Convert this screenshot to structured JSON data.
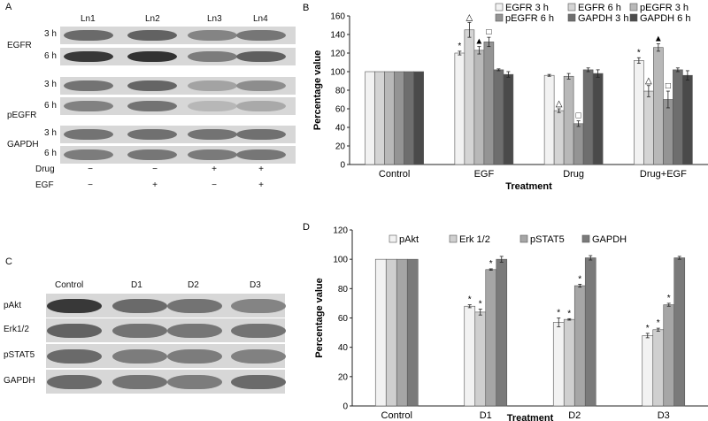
{
  "panel_a": {
    "letter": "A",
    "lanes": [
      "Ln1",
      "Ln2",
      "Ln3",
      "Ln4"
    ],
    "groups": [
      {
        "label": "EGFR",
        "rows": [
          "3 h",
          "6 h"
        ],
        "intensity": [
          [
            0.55,
            0.6,
            0.4,
            0.48
          ],
          [
            0.85,
            0.88,
            0.45,
            0.62
          ]
        ]
      },
      {
        "label": "pEGFR",
        "rows": [
          "3 h",
          "6 h"
        ],
        "intensity": [
          [
            0.5,
            0.58,
            0.22,
            0.35
          ],
          [
            0.42,
            0.5,
            0.1,
            0.18
          ]
        ]
      },
      {
        "label": "GAPDH",
        "rows": [
          "3 h",
          "6 h"
        ],
        "intensity": [
          [
            0.5,
            0.52,
            0.5,
            0.52
          ],
          [
            0.45,
            0.48,
            0.46,
            0.48
          ]
        ]
      }
    ],
    "conditions": [
      {
        "label": "Drug",
        "signs": [
          "−",
          "−",
          "+",
          "+"
        ]
      },
      {
        "label": "EGF",
        "signs": [
          "−",
          "+",
          "−",
          "+"
        ]
      }
    ]
  },
  "panel_c": {
    "letter": "C",
    "lanes": [
      "Control",
      "D1",
      "D2",
      "D3"
    ],
    "rows": [
      {
        "label": "pAkt",
        "intensity": [
          0.85,
          0.55,
          0.5,
          0.4
        ]
      },
      {
        "label": "Erk1/2",
        "intensity": [
          0.6,
          0.5,
          0.48,
          0.5
        ]
      },
      {
        "label": "pSTAT5",
        "intensity": [
          0.55,
          0.45,
          0.45,
          0.42
        ]
      },
      {
        "label": "GAPDH",
        "intensity": [
          0.55,
          0.5,
          0.45,
          0.55
        ]
      }
    ]
  },
  "chart_data": [
    {
      "panel": "B",
      "type": "bar",
      "xlabel": "Treatment",
      "ylabel": "Percentage value",
      "ylim": [
        0,
        160
      ],
      "yticks": [
        0,
        20,
        40,
        60,
        80,
        100,
        120,
        140,
        160
      ],
      "grid": false,
      "legend_position": "top",
      "categories": [
        "Control",
        "EGF",
        "Drug",
        "Drug+EGF"
      ],
      "series": [
        {
          "name": "EGFR 3 h",
          "color": "#f2f2f2",
          "values": [
            100,
            120,
            96,
            112
          ],
          "errors": [
            0,
            2,
            1,
            3
          ],
          "marks": [
            "",
            "*",
            "",
            "*"
          ]
        },
        {
          "name": "EGFR 6 h",
          "color": "#d4d4d4",
          "values": [
            100,
            145,
            58,
            79
          ],
          "errors": [
            0,
            8,
            2,
            6
          ],
          "marks": [
            "",
            "△",
            "△",
            "△"
          ]
        },
        {
          "name": "pEGFR 3 h",
          "color": "#b8b8b8",
          "values": [
            100,
            123,
            95,
            126
          ],
          "errors": [
            0,
            4,
            3,
            4
          ],
          "marks": [
            "",
            "▲",
            "",
            "▲"
          ]
        },
        {
          "name": "pEGFR 6 h",
          "color": "#949494",
          "values": [
            100,
            132,
            44,
            70
          ],
          "errors": [
            0,
            5,
            3,
            9
          ],
          "marks": [
            "",
            "□",
            "□",
            "□"
          ]
        },
        {
          "name": "GAPDH 3 h",
          "color": "#6e6e6e",
          "values": [
            100,
            102,
            102,
            102
          ],
          "errors": [
            0,
            1,
            2,
            2
          ],
          "marks": [
            "",
            "",
            "",
            ""
          ]
        },
        {
          "name": "GAPDH 6 h",
          "color": "#4a4a4a",
          "values": [
            100,
            97,
            98,
            96
          ],
          "errors": [
            0,
            3,
            4,
            5
          ],
          "marks": [
            "",
            "",
            "",
            ""
          ]
        }
      ]
    },
    {
      "panel": "D",
      "type": "bar",
      "xlabel": "Treatment",
      "ylabel": "Percentage value",
      "ylim": [
        0,
        120
      ],
      "yticks": [
        0,
        20,
        40,
        60,
        80,
        100,
        120
      ],
      "grid": false,
      "legend_position": "top",
      "categories": [
        "Control",
        "D1",
        "D2",
        "D3"
      ],
      "series": [
        {
          "name": "pAkt",
          "color": "#f2f2f2",
          "values": [
            100,
            68,
            57,
            48
          ],
          "errors": [
            0,
            1,
            3,
            1.5
          ],
          "marks": [
            "",
            "*",
            "*",
            "*"
          ]
        },
        {
          "name": "Erk 1/2",
          "color": "#cfcfcf",
          "values": [
            100,
            64,
            59,
            52
          ],
          "errors": [
            0,
            2,
            0.5,
            1
          ],
          "marks": [
            "",
            "*",
            "*",
            "*"
          ]
        },
        {
          "name": "pSTAT5",
          "color": "#a6a6a6",
          "values": [
            100,
            93,
            82,
            69
          ],
          "errors": [
            0,
            0.5,
            1,
            1
          ],
          "marks": [
            "",
            "*",
            "*",
            "*"
          ]
        },
        {
          "name": "GAPDH",
          "color": "#7a7a7a",
          "values": [
            100,
            100,
            101,
            101
          ],
          "errors": [
            0,
            2,
            1.5,
            1
          ],
          "marks": [
            "",
            "",
            "",
            ""
          ]
        }
      ]
    }
  ]
}
